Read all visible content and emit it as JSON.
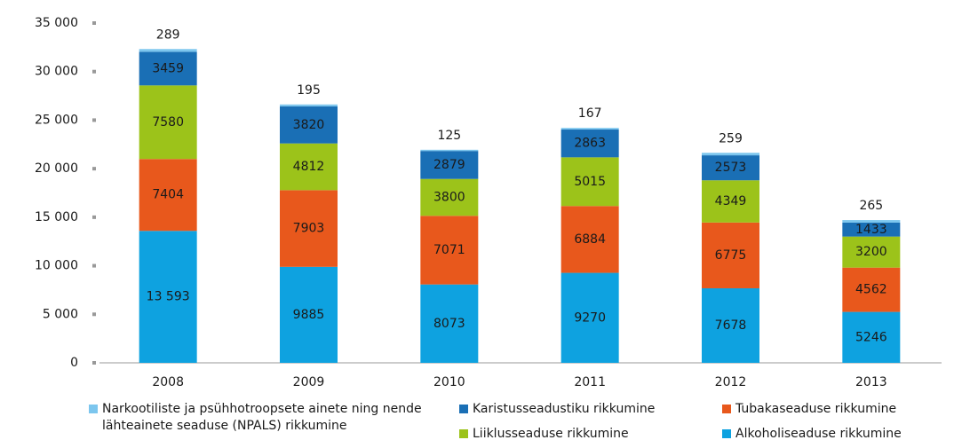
{
  "chart_data": {
    "type": "stacked_bar",
    "categories": [
      "2008",
      "2009",
      "2010",
      "2011",
      "2012",
      "2013"
    ],
    "series": [
      {
        "name": "Alkoholiseaduse rikkumine",
        "color": "#0ea2e0",
        "values": [
          13593,
          9885,
          8073,
          9270,
          7678,
          5246
        ],
        "value_labels": [
          "13 593",
          "9885",
          "8073",
          "9270",
          "7678",
          "5246"
        ]
      },
      {
        "name": "Tubakaseaduse rikkumine",
        "color": "#e8581c",
        "values": [
          7404,
          7903,
          7071,
          6884,
          6775,
          4562
        ]
      },
      {
        "name": "Liiklusseaduse rikkumine",
        "color": "#9cc31a",
        "values": [
          7580,
          4812,
          3800,
          5015,
          4349,
          3200
        ]
      },
      {
        "name": "Karistusseadustiku rikkumine",
        "color": "#1a6fb5",
        "values": [
          3459,
          3820,
          2879,
          2863,
          2573,
          1433
        ]
      },
      {
        "name": "Narkootiliste ja psühhotroopsete ainete ning nende lähteainete seaduse (NPALS) rikkumine",
        "color": "#7cc6ee",
        "values": [
          289,
          195,
          125,
          167,
          259,
          265
        ]
      }
    ],
    "ylim": [
      0,
      35000
    ],
    "yticks": [
      0,
      {
        "value": 5000,
        "label": "5 000"
      },
      {
        "value": 10000,
        "label": "10 000"
      },
      {
        "value": 15000,
        "label": "15 000"
      },
      {
        "value": 20000,
        "label": "20 000"
      },
      {
        "value": 25000,
        "label": "25 000"
      },
      {
        "value": 30000,
        "label": "30 000"
      },
      {
        "value": 35000,
        "label": "35 000"
      }
    ]
  }
}
